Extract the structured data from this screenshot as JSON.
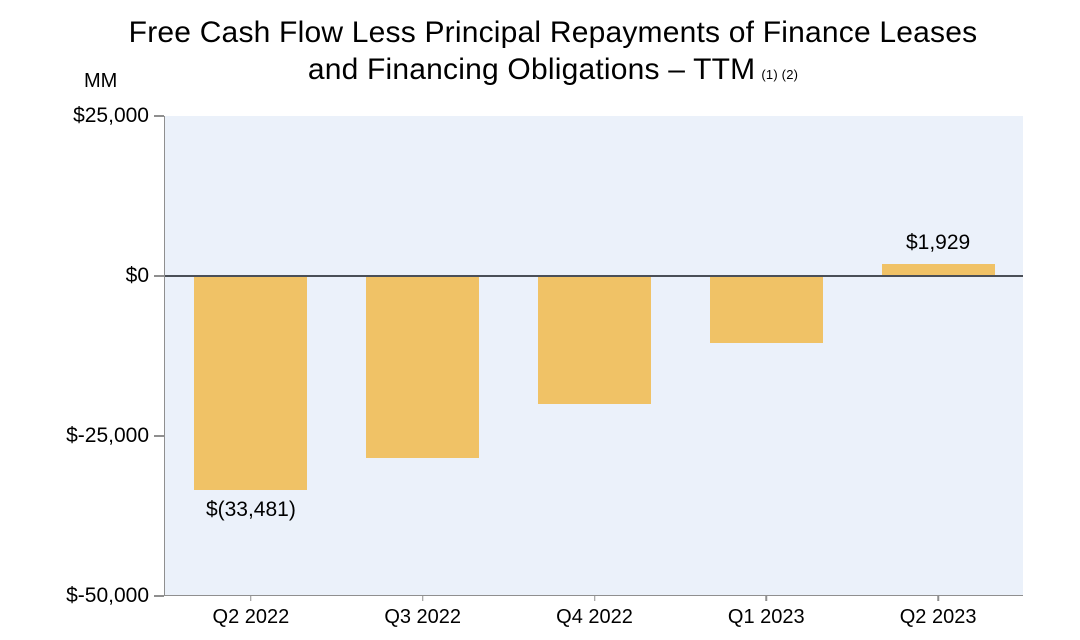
{
  "title": {
    "line1": "Free Cash Flow Less Principal Repayments of Finance Leases",
    "line2": "and Financing Obligations – TTM",
    "footnote": "(1) (2)"
  },
  "axis_unit_label": "MM",
  "chart_data": {
    "type": "bar",
    "title": "Free Cash Flow Less Principal Repayments of Finance Leases and Financing Obligations – TTM (1) (2)",
    "categories": [
      "Q2 2022",
      "Q3 2022",
      "Q4 2022",
      "Q1 2023",
      "Q2 2023"
    ],
    "values": [
      -33481,
      -28500,
      -20000,
      -10500,
      1929
    ],
    "data_labels": [
      "$(33,481)",
      "",
      "",
      "",
      "$1,929"
    ],
    "ylabel": "MM",
    "ylim": [
      -50000,
      25000
    ],
    "yticks": [
      25000,
      0,
      -25000,
      -50000
    ],
    "ytick_labels": [
      "$25,000",
      "$0",
      "$-25,000",
      "$-50,000"
    ],
    "grid": false,
    "legend": "none",
    "bar_color": "#F0C266",
    "plot_bg_color": "#EBF1FA",
    "zero_line_color": "#4a4f57",
    "axis_line_color": "#8f8f8f"
  }
}
